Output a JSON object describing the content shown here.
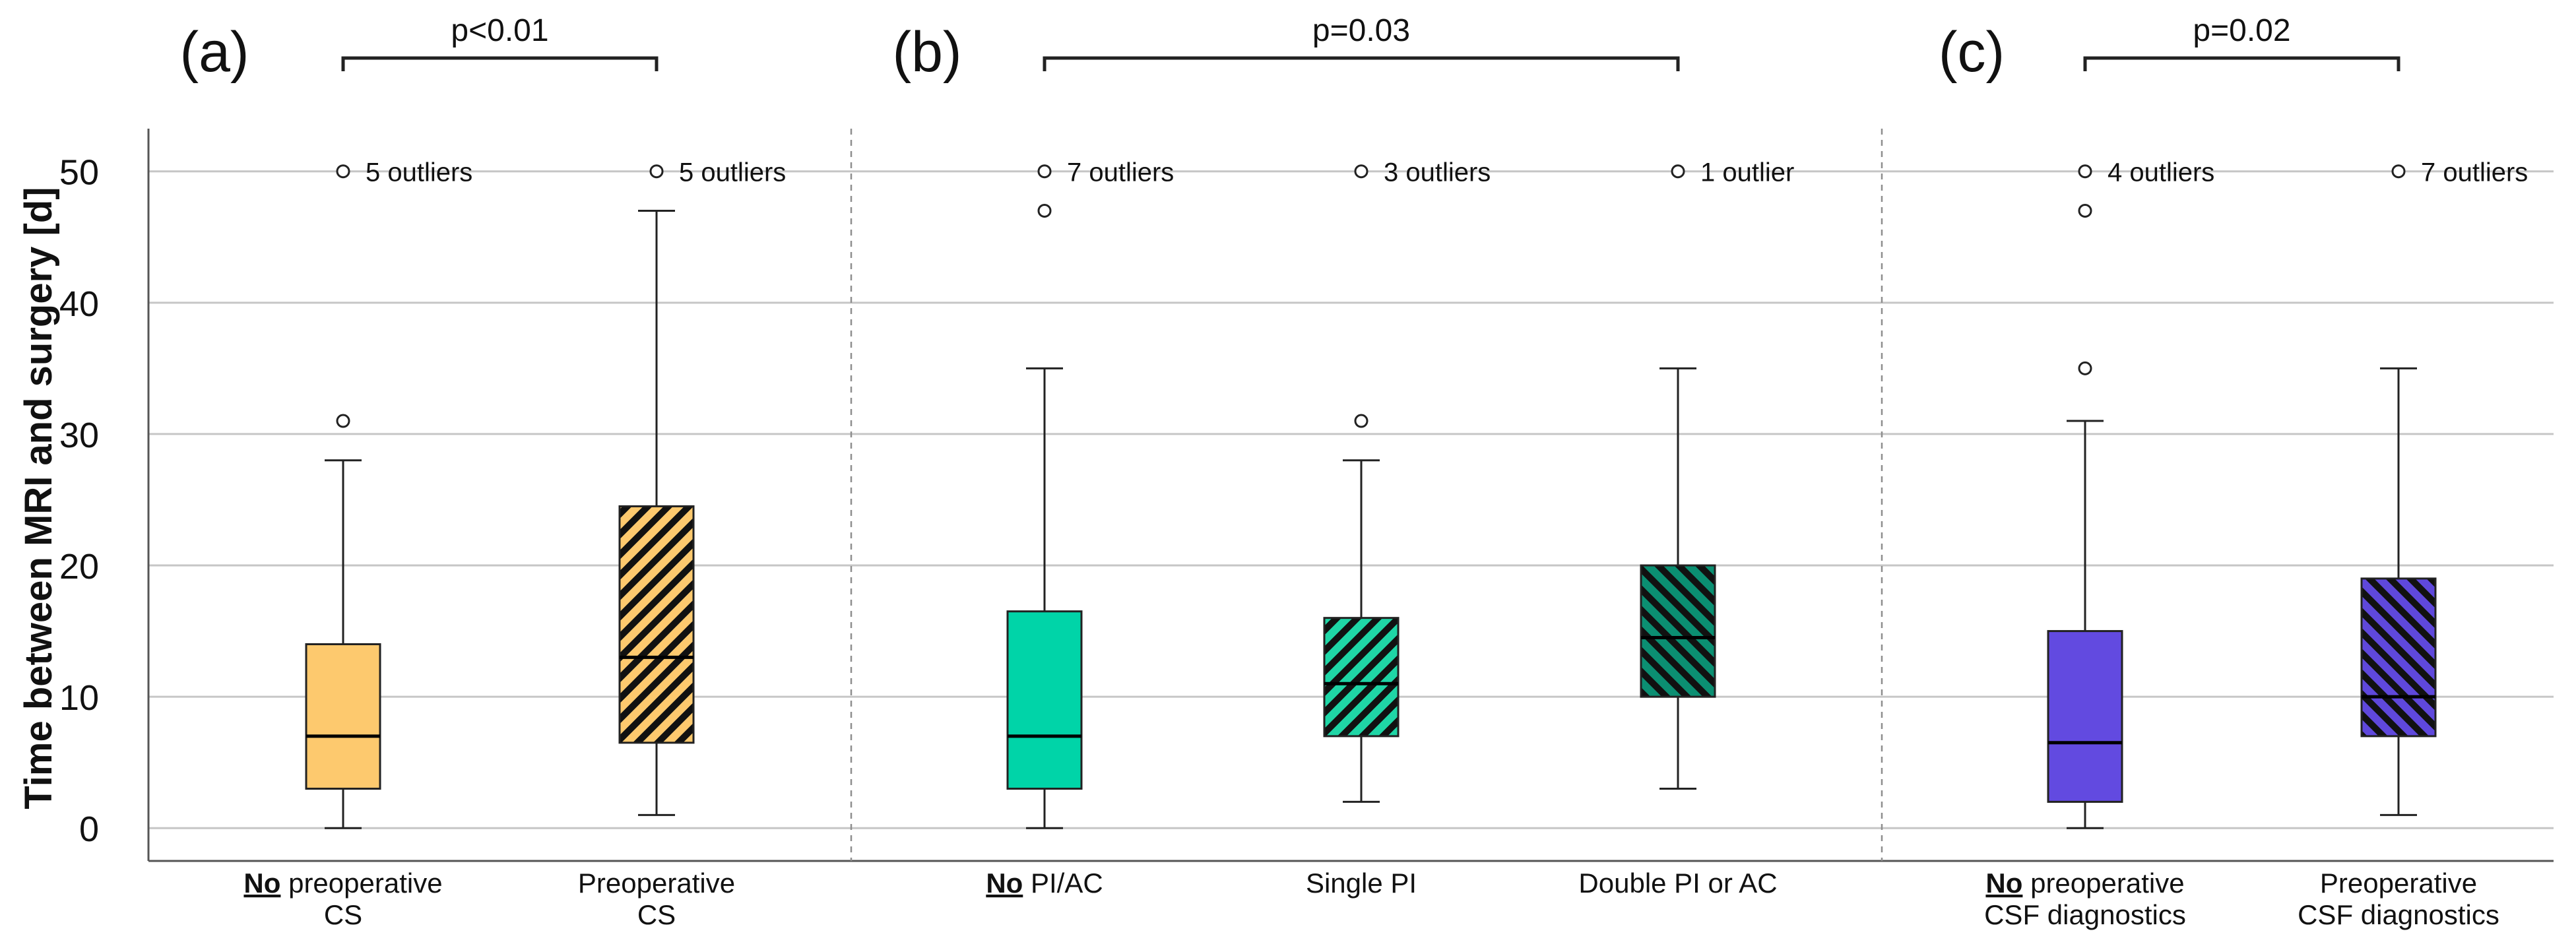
{
  "chart_data": {
    "type": "box",
    "ylabel": "Time between MRI and surgery [d]",
    "ylim": [
      -2.5,
      53
    ],
    "yticks": [
      0,
      10,
      20,
      30,
      40,
      50
    ],
    "grid": true,
    "panels": [
      {
        "label": "(a)",
        "comparison": {
          "text": "p<0.01",
          "from": 0,
          "to": 1
        },
        "groups": [
          {
            "label_bold": "No",
            "label_line1": "preoperative",
            "label_line2": "CS",
            "min": 0,
            "q1": 3,
            "median": 7,
            "q3": 14,
            "max": 28,
            "outliers": [
              31
            ],
            "outlier_note": "5 outliers",
            "color": "#fdc96e",
            "pattern": "none"
          },
          {
            "label_bold": "",
            "label_line1": "Preoperative",
            "label_line2": "CS",
            "min": 1,
            "q1": 6.5,
            "median": 13,
            "q3": 24.5,
            "max": 47,
            "outliers": [],
            "outlier_note": "5 outliers",
            "color": "#fdc96e",
            "pattern": "diag-right"
          }
        ]
      },
      {
        "label": "(b)",
        "comparison": {
          "text": "p=0.03",
          "from": 0,
          "to": 2
        },
        "groups": [
          {
            "label_bold": "No",
            "label_line1": "PI/AC",
            "label_line2": "",
            "min": 0,
            "q1": 3,
            "median": 7,
            "q3": 16.5,
            "max": 35,
            "outliers": [
              47
            ],
            "outlier_note": "7 outliers",
            "color": "#00d4a8",
            "pattern": "none"
          },
          {
            "label_bold": "",
            "label_line1": "Single PI",
            "label_line2": "",
            "min": 2,
            "q1": 7,
            "median": 11,
            "q3": 16,
            "max": 28,
            "outliers": [
              31
            ],
            "outlier_note": "3 outliers",
            "color": "#1fd6a6",
            "pattern": "diag-right"
          },
          {
            "label_bold": "",
            "label_line1": "Double PI or AC",
            "label_line2": "",
            "min": 3,
            "q1": 10,
            "median": 14.5,
            "q3": 20,
            "max": 35,
            "outliers": [],
            "outlier_note": "1 outlier",
            "color": "#0b8f72",
            "pattern": "diag-left"
          }
        ]
      },
      {
        "label": "(c)",
        "comparison": {
          "text": "p=0.02",
          "from": 0,
          "to": 1
        },
        "groups": [
          {
            "label_bold": "No",
            "label_line1": "preoperative",
            "label_line2": "CSF diagnostics",
            "min": 0,
            "q1": 2,
            "median": 6.5,
            "q3": 15,
            "max": 31,
            "outliers": [
              35,
              47
            ],
            "outlier_note": "4 outliers",
            "color": "#624ae0",
            "pattern": "none"
          },
          {
            "label_bold": "",
            "label_line1": "Preoperative",
            "label_line2": "CSF diagnostics",
            "min": 1,
            "q1": 7,
            "median": 10,
            "q3": 19,
            "max": 35,
            "outliers": [],
            "outlier_note": "7 outliers",
            "color": "#5f48dc",
            "pattern": "diag-left"
          }
        ]
      }
    ]
  }
}
